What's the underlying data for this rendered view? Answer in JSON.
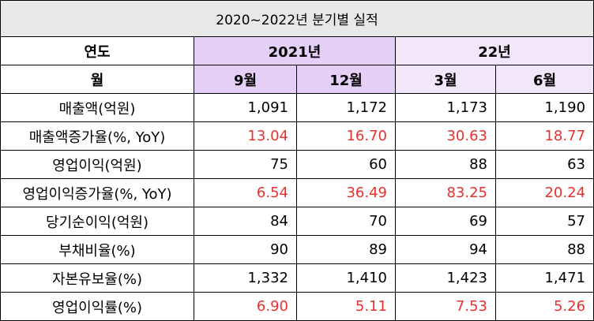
{
  "table": {
    "title": "2020~2022년 분기별 실적",
    "header": {
      "row1": {
        "label": "연도",
        "groups": [
          {
            "text": "2021년",
            "color": "#e6cff6"
          },
          {
            "text": "22년",
            "color": "#f2e6fb"
          }
        ]
      },
      "row2": {
        "label": "월",
        "cells": [
          {
            "text": "9월",
            "color": "#e6cff6"
          },
          {
            "text": "12월",
            "color": "#e6cff6"
          },
          {
            "text": "3월",
            "color": "#f2e6fb"
          },
          {
            "text": "6월",
            "color": "#f2e6fb"
          }
        ]
      }
    },
    "rows": [
      {
        "label": "매출액(억원)",
        "values": [
          "1,091",
          "1,172",
          "1,173",
          "1,190"
        ],
        "color": "#000000"
      },
      {
        "label": "매출액증가율(%, YoY)",
        "values": [
          "13.04",
          "16.70",
          "30.63",
          "18.77"
        ],
        "color": "#e8302e"
      },
      {
        "label": "영업이익(억원)",
        "values": [
          "75",
          "60",
          "88",
          "63"
        ],
        "color": "#000000"
      },
      {
        "label": "영업이익증가율(%, YoY)",
        "values": [
          "6.54",
          "36.49",
          "83.25",
          "20.24"
        ],
        "color": "#e8302e"
      },
      {
        "label": "당기순이익(억원)",
        "values": [
          "84",
          "70",
          "69",
          "57"
        ],
        "color": "#000000"
      },
      {
        "label": "부채비율(%)",
        "values": [
          "90",
          "89",
          "94",
          "88"
        ],
        "color": "#000000"
      },
      {
        "label": "자본유보율(%)",
        "values": [
          "1,332",
          "1,410",
          "1,423",
          "1,471"
        ],
        "color": "#000000"
      },
      {
        "label": "영업이익률(%)",
        "values": [
          "6.90",
          "5.11",
          "7.53",
          "5.26"
        ],
        "color": "#e8302e"
      }
    ]
  }
}
